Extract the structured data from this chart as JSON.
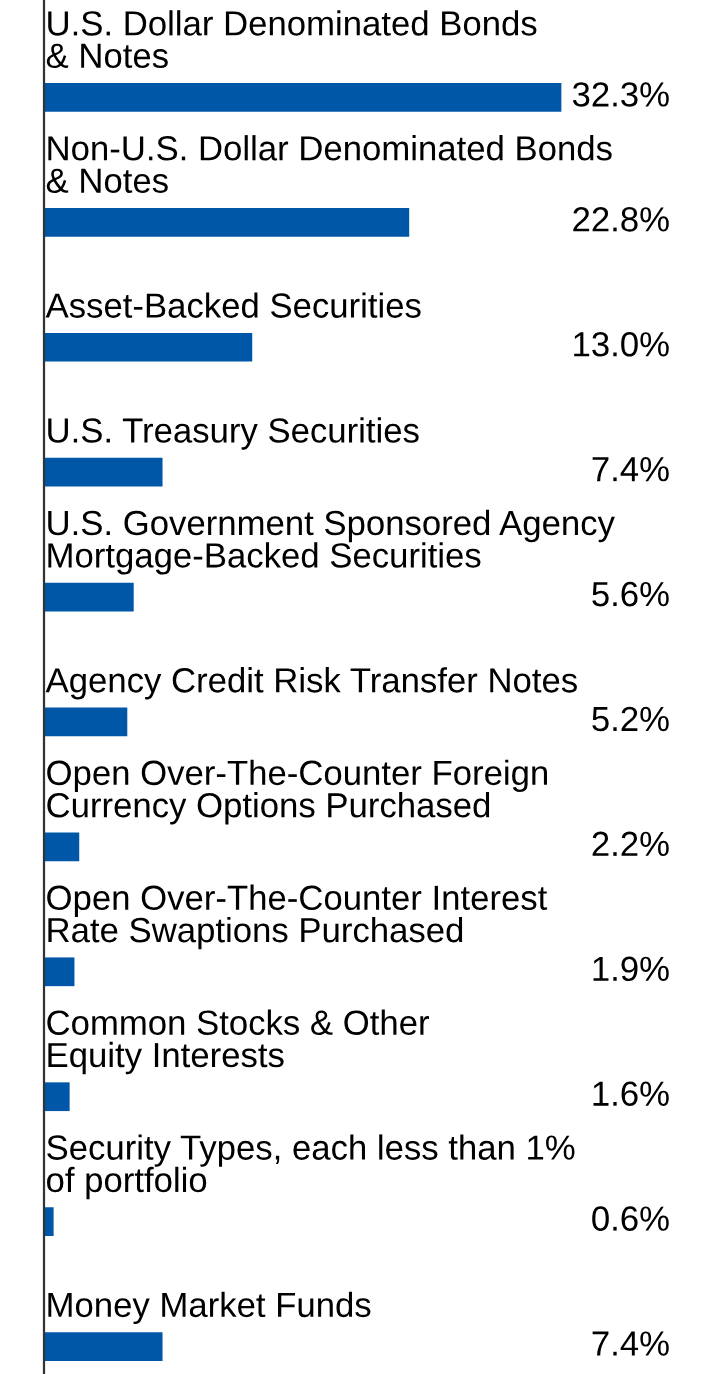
{
  "chart_data": {
    "type": "bar",
    "orientation": "horizontal",
    "data_labels": true,
    "color": "#0057a8",
    "categories": [
      "U.S. Dollar Denominated Bonds\n& Notes",
      "Non-U.S. Dollar Denominated Bonds\n& Notes",
      "Asset-Backed Securities",
      "U.S. Treasury Securities",
      "U.S. Government Sponsored Agency\nMortgage-Backed Securities",
      "Agency Credit Risk Transfer Notes",
      "Open Over-The-Counter Foreign\nCurrency Options Purchased",
      "Open Over-The-Counter Interest\nRate Swaptions Purchased",
      "Common Stocks & Other\nEquity Interests",
      "Security Types, each less than 1%\nof portfolio",
      "Money Market Funds"
    ],
    "values": [
      32.3,
      22.8,
      13.0,
      7.4,
      5.6,
      5.2,
      2.2,
      1.9,
      1.6,
      0.6,
      7.4
    ],
    "value_labels": [
      "32.3%",
      "22.8%",
      "13.0%",
      "7.4%",
      "5.6%",
      "5.2%",
      "2.2%",
      "1.9%",
      "1.6%",
      "0.6%",
      "7.4%"
    ]
  }
}
